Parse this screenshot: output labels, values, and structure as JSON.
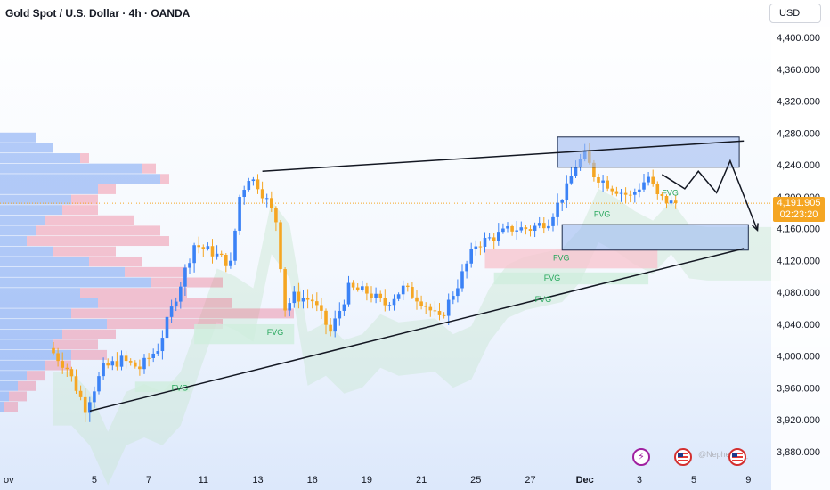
{
  "header": {
    "title": "Gold Spot / U.S. Dollar · 4h · OANDA",
    "currency": "USD"
  },
  "current_price": {
    "price": "4,191.905",
    "countdown": "02:23:20",
    "color": "#f5a623"
  },
  "watermark": "@Nephe...m_",
  "footer_icons": [
    "lightning-icon",
    "us-flag-icon",
    "us-flag-icon"
  ],
  "colors": {
    "up": "#3b82f6",
    "down": "#f5a623",
    "zone_fill": "#9fbbf0",
    "zone_stroke": "#1c2b4a"
  },
  "chart_data": {
    "type": "candlestick",
    "symbol": "XAUUSD",
    "timeframe": "4h",
    "y_ticks": [
      4400,
      4360,
      4320,
      4280,
      4240,
      4200,
      4160,
      4120,
      4080,
      4040,
      4000,
      3960,
      3920,
      3880
    ],
    "y_tick_labels": [
      "4,400.000",
      "4,360.000",
      "4,320.000",
      "4,280.000",
      "4,240.000",
      "4,200.000",
      "4,160.000",
      "4,120.000",
      "4,080.000",
      "4,040.000",
      "4,000.000",
      "3,960.000",
      "3,920.000",
      "3,880.000"
    ],
    "ylim": [
      3870,
      4430
    ],
    "x_ticks": [
      {
        "label": "ov",
        "bar": -8
      },
      {
        "label": "5",
        "bar": 9
      },
      {
        "label": "7",
        "bar": 21
      },
      {
        "label": "11",
        "bar": 33
      },
      {
        "label": "13",
        "bar": 45
      },
      {
        "label": "16",
        "bar": 57
      },
      {
        "label": "19",
        "bar": 69
      },
      {
        "label": "21",
        "bar": 81
      },
      {
        "label": "25",
        "bar": 93
      },
      {
        "label": "27",
        "bar": 105
      },
      {
        "label": "Dec",
        "bar": 117
      },
      {
        "label": "3",
        "bar": 129
      },
      {
        "label": "5",
        "bar": 141
      },
      {
        "label": "9",
        "bar": 153
      }
    ],
    "xlim": [
      -10,
      161
    ],
    "waypoints": [
      [
        0,
        4010
      ],
      [
        4,
        3985
      ],
      [
        8,
        3935
      ],
      [
        12,
        3985
      ],
      [
        16,
        3995
      ],
      [
        20,
        3985
      ],
      [
        24,
        4010
      ],
      [
        28,
        4075
      ],
      [
        32,
        4140
      ],
      [
        36,
        4130
      ],
      [
        40,
        4115
      ],
      [
        42,
        4200
      ],
      [
        44,
        4225
      ],
      [
        46,
        4215
      ],
      [
        48,
        4195
      ],
      [
        50,
        4170
      ],
      [
        52,
        4060
      ],
      [
        54,
        4075
      ],
      [
        58,
        4070
      ],
      [
        62,
        4030
      ],
      [
        66,
        4085
      ],
      [
        70,
        4080
      ],
      [
        74,
        4065
      ],
      [
        78,
        4085
      ],
      [
        82,
        4070
      ],
      [
        86,
        4045
      ],
      [
        90,
        4090
      ],
      [
        94,
        4140
      ],
      [
        98,
        4150
      ],
      [
        102,
        4160
      ],
      [
        106,
        4160
      ],
      [
        110,
        4170
      ],
      [
        114,
        4210
      ],
      [
        116,
        4240
      ],
      [
        118,
        4252
      ],
      [
        120,
        4228
      ],
      [
        124,
        4212
      ],
      [
        128,
        4200
      ],
      [
        132,
        4225
      ],
      [
        134,
        4200
      ],
      [
        137,
        4192
      ]
    ],
    "candles_count": 138,
    "current_price": 4191.905,
    "fvg_labels": [
      {
        "text": "FVG",
        "bar": 134,
        "price": 4205
      },
      {
        "text": "FVG",
        "bar": 119,
        "price": 4178
      },
      {
        "text": "FVG",
        "bar": 110,
        "price": 4123
      },
      {
        "text": "FVG",
        "bar": 108,
        "price": 4098
      },
      {
        "text": "FVG",
        "bar": 106,
        "price": 4071
      },
      {
        "text": "FVG",
        "bar": 47,
        "price": 4030
      },
      {
        "text": "FVG",
        "bar": 26,
        "price": 3960
      }
    ],
    "fvg_zones": [
      {
        "bar_from": 31,
        "bar_to": 53,
        "low": 4015,
        "high": 4040,
        "color": "green"
      },
      {
        "bar_from": 18,
        "bar_to": 30,
        "low": 3955,
        "high": 3968,
        "color": "green"
      },
      {
        "bar_from": 95,
        "bar_to": 133,
        "low": 4110,
        "high": 4135,
        "color": "red"
      },
      {
        "bar_from": 97,
        "bar_to": 131,
        "low": 4090,
        "high": 4105,
        "color": "green"
      }
    ],
    "supply_zone": {
      "bar_from": 111,
      "bar_to": 151,
      "low": 4237,
      "high": 4275
    },
    "demand_zone": {
      "bar_from": 112,
      "bar_to": 153,
      "low": 4133,
      "high": 4165
    },
    "wedge_upper": {
      "from": [
        46,
        4232
      ],
      "to": [
        152,
        4270
      ]
    },
    "wedge_lower": {
      "from": [
        8,
        3931
      ],
      "to": [
        152,
        4135
      ]
    },
    "projection": [
      [
        134,
        4228
      ],
      [
        139,
        4210
      ],
      [
        142,
        4232
      ],
      [
        146,
        4205
      ],
      [
        149,
        4245
      ],
      [
        155,
        4158
      ]
    ],
    "volume_profile": [
      {
        "price": 4275,
        "up": 40,
        "down": 0
      },
      {
        "price": 4262,
        "up": 60,
        "down": 0
      },
      {
        "price": 4249,
        "up": 90,
        "down": 10
      },
      {
        "price": 4236,
        "up": 160,
        "down": 15
      },
      {
        "price": 4223,
        "up": 180,
        "down": 10
      },
      {
        "price": 4210,
        "up": 110,
        "down": 20
      },
      {
        "price": 4197,
        "up": 80,
        "down": 30
      },
      {
        "price": 4184,
        "up": 70,
        "down": 40
      },
      {
        "price": 4171,
        "up": 50,
        "down": 100
      },
      {
        "price": 4158,
        "up": 40,
        "down": 140
      },
      {
        "price": 4145,
        "up": 30,
        "down": 160
      },
      {
        "price": 4132,
        "up": 60,
        "down": 70
      },
      {
        "price": 4119,
        "up": 100,
        "down": 60
      },
      {
        "price": 4106,
        "up": 140,
        "down": 70
      },
      {
        "price": 4093,
        "up": 170,
        "down": 80
      },
      {
        "price": 4080,
        "up": 90,
        "down": 120
      },
      {
        "price": 4067,
        "up": 110,
        "down": 150
      },
      {
        "price": 4054,
        "up": 80,
        "down": 250
      },
      {
        "price": 4041,
        "up": 120,
        "down": 130
      },
      {
        "price": 4028,
        "up": 70,
        "down": 60
      },
      {
        "price": 4015,
        "up": 60,
        "down": 50
      },
      {
        "price": 4002,
        "up": 80,
        "down": 40
      },
      {
        "price": 3989,
        "up": 50,
        "down": 30
      },
      {
        "price": 3976,
        "up": 30,
        "down": 20
      },
      {
        "price": 3963,
        "up": 20,
        "down": 20
      },
      {
        "price": 3950,
        "up": 10,
        "down": 20
      },
      {
        "price": 3937,
        "up": 5,
        "down": 15
      }
    ]
  }
}
